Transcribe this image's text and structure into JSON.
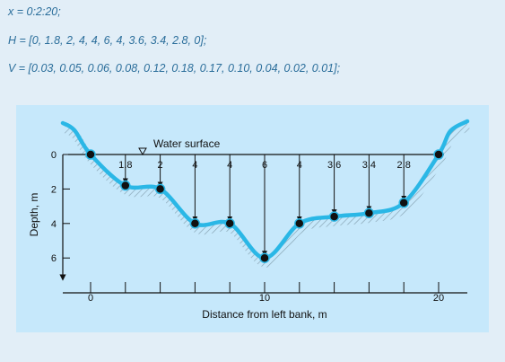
{
  "code": {
    "x_line": "x = 0:2:20;",
    "h_line": "H = [0, 1.8, 2, 4, 4, 6, 4, 3.6, 3.4, 2.8, 0];",
    "v_line": "V = [0.03, 0.05, 0.06, 0.08, 0.12, 0.18, 0.17, 0.10, 0.04, 0.02, 0.01];"
  },
  "figure": {
    "water_surface_label": "Water surface",
    "xlabel": "Distance from left bank, m",
    "ylabel": "Depth, m",
    "x_ticks": [
      "0",
      "10",
      "20"
    ],
    "y_ticks": [
      "0",
      "2",
      "4",
      "6"
    ],
    "channel_color": "#2ab7e6",
    "panel_color": "#c6e8fb"
  },
  "chart_data": {
    "type": "line",
    "x": [
      0,
      2,
      4,
      6,
      8,
      10,
      12,
      14,
      16,
      18,
      20
    ],
    "depths": [
      0,
      1.8,
      2,
      4,
      4,
      6,
      4,
      3.6,
      3.4,
      2.8,
      0
    ],
    "depth_labels": [
      "1.8",
      "2",
      "4",
      "4",
      "6",
      "4",
      "3.6",
      "3.4",
      "2.8"
    ],
    "xlim": [
      0,
      20
    ],
    "ylim": [
      0,
      6
    ],
    "ylabel": "Depth, m",
    "xlabel": "Distance from left bank, m"
  }
}
